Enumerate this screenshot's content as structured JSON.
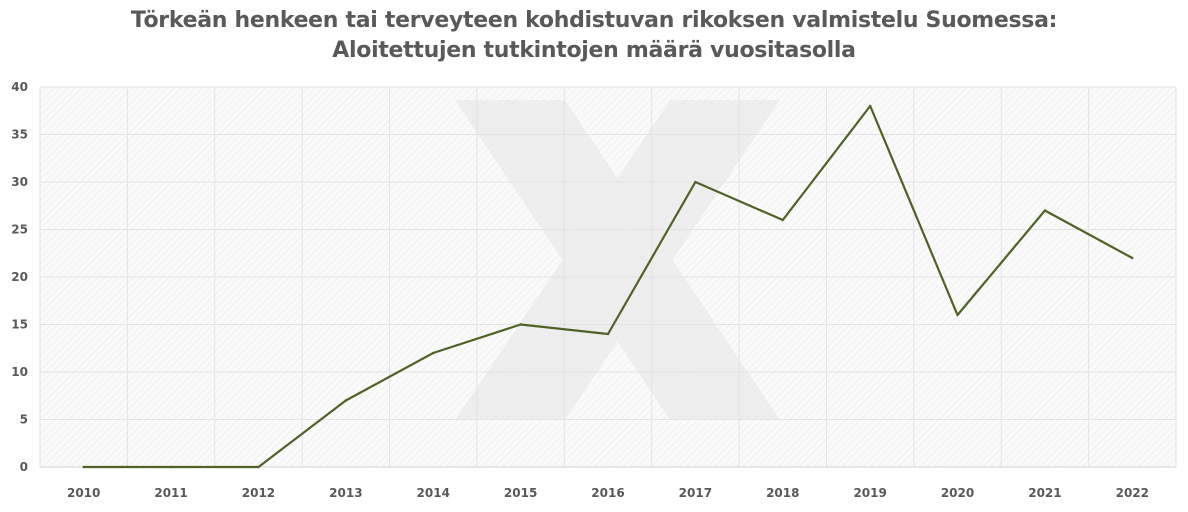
{
  "chart_data": {
    "type": "line",
    "title": [
      "Törkeän henkeen tai terveyteen kohdistuvan rikoksen valmistelu Suomessa:",
      "Aloitettujen tutkintojen määrä vuositasolla"
    ],
    "xlabel": "",
    "ylabel": "",
    "categories": [
      "2010",
      "2011",
      "2012",
      "2013",
      "2014",
      "2015",
      "2016",
      "2017",
      "2018",
      "2019",
      "2020",
      "2021",
      "2022"
    ],
    "series": [
      {
        "values": [
          0,
          0,
          0,
          7,
          12,
          15,
          14,
          30,
          26,
          38,
          16,
          27,
          22
        ]
      }
    ],
    "ylim": [
      0,
      40
    ],
    "yticks": [
      0,
      5,
      10,
      15,
      20,
      25,
      30,
      35,
      40
    ],
    "grid": true,
    "legend": "none",
    "colors": {
      "line": "#4f6228",
      "grid": "#e3e3e3",
      "text": "#595959"
    }
  }
}
